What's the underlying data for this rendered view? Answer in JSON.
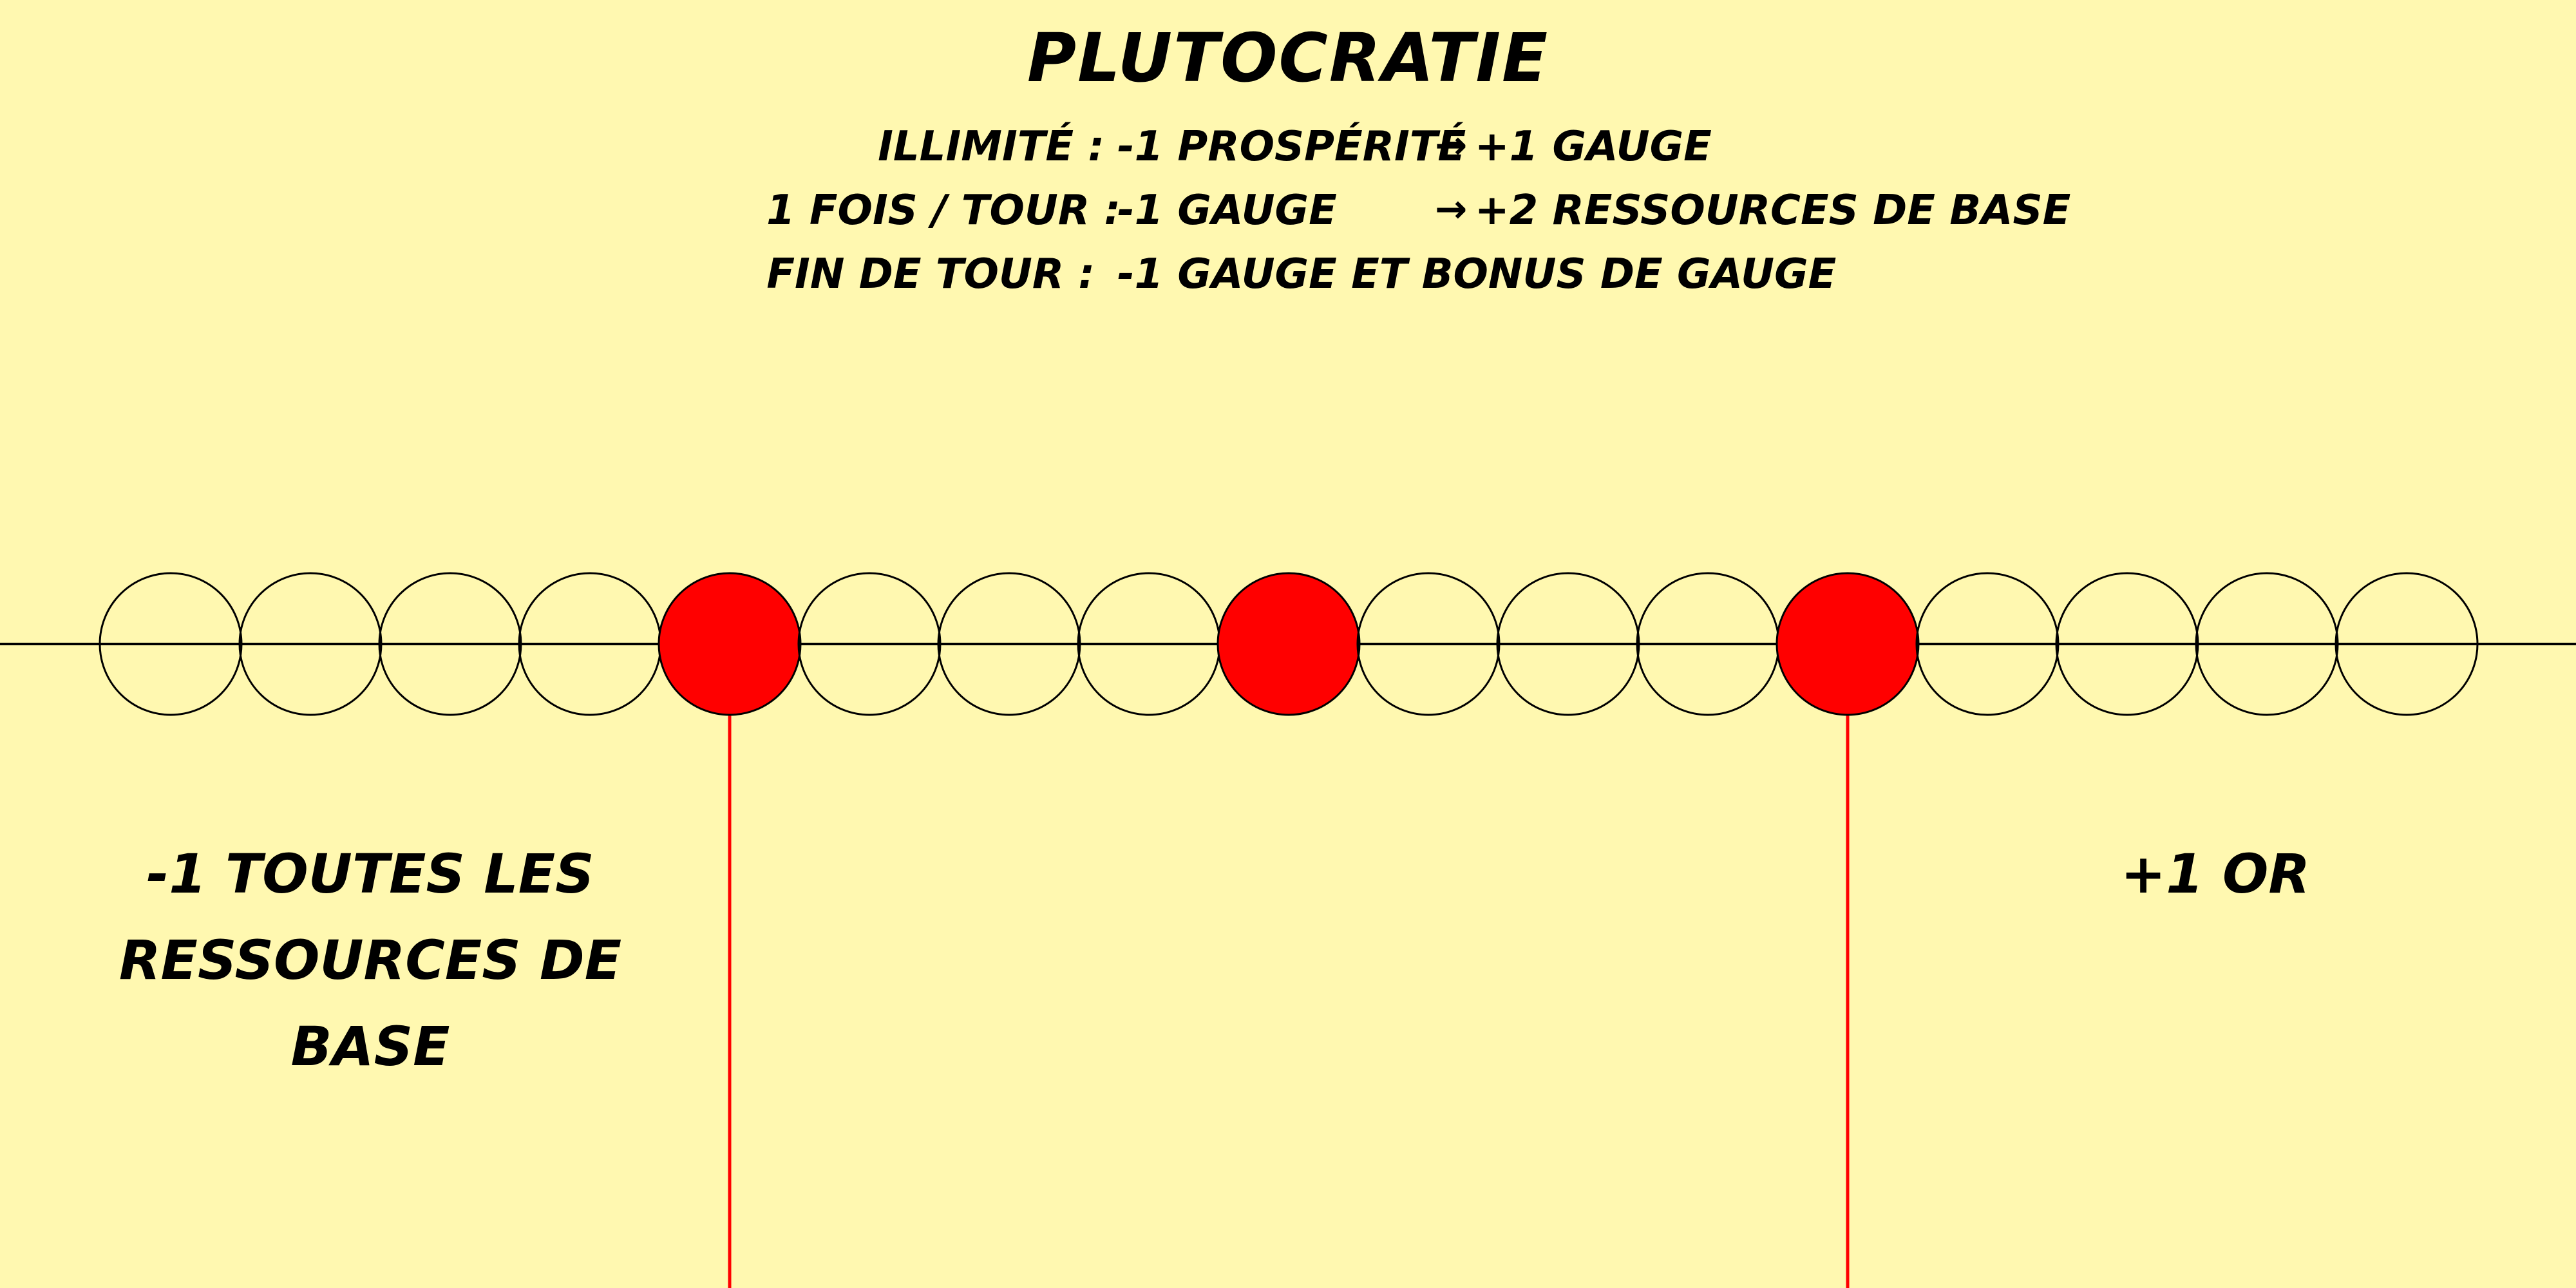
{
  "card": {
    "title": "PLUTOCRATIE",
    "background_color": "#fff8b0",
    "accent_color": "#ff0000",
    "rules": [
      {
        "label": "ILLIMITÉ :",
        "effect": "-1 PROSPÉRITÉ",
        "arrow": "→",
        "result": "+1 GAUGE"
      },
      {
        "label": "1 FOIS / TOUR :",
        "effect": "-1 GAUGE",
        "arrow": "→",
        "result": "+2 RESSOURCES DE BASE"
      },
      {
        "label": "FIN DE TOUR :",
        "effect": "-1 GAUGE ET BONUS DE GAUGE"
      }
    ],
    "gauge": {
      "slot_count": 17,
      "highlighted_slots": [
        4,
        8,
        12
      ],
      "threshold_slots": [
        4,
        12
      ]
    },
    "bonuses": {
      "left": "-1 TOUTES LES RESSOURCES DE BASE",
      "right": "+1 OR"
    }
  }
}
